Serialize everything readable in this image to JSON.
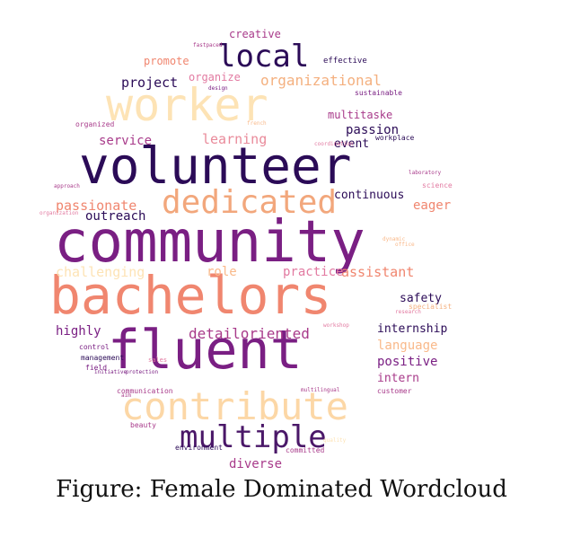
{
  "caption": "Figure: Female Dominated Wordcloud",
  "palette": {
    "dark": "#2b0b57",
    "purple": "#7a1f83",
    "magenta": "#a83a8a",
    "salmon": "#f0866f",
    "peach": "#f9b98a",
    "cream": "#fde3b5",
    "pink": "#e27aa1"
  },
  "words": [
    {
      "text": "community",
      "color": "#7a1f83",
      "weight": 1.0
    },
    {
      "text": "volunteer",
      "color": "#2b0b57",
      "weight": 0.86
    },
    {
      "text": "bachelors",
      "color": "#f0866f",
      "weight": 0.82
    },
    {
      "text": "fluent",
      "color": "#7a1f83",
      "weight": 0.78
    },
    {
      "text": "worker",
      "color": "#fde3b5",
      "weight": 0.7
    },
    {
      "text": "contribute",
      "color": "#fcd7a6",
      "weight": 0.55
    },
    {
      "text": "dedicated",
      "color": "#f2a77c",
      "weight": 0.48
    },
    {
      "text": "local",
      "color": "#2b0b57",
      "weight": 0.45
    },
    {
      "text": "multiple",
      "color": "#4a1768",
      "weight": 0.42
    },
    {
      "text": "passionate",
      "color": "#f0866f",
      "weight": 0.22
    },
    {
      "text": "organizational",
      "color": "#f4b07f",
      "weight": 0.22
    },
    {
      "text": "detailoriented",
      "color": "#a83a8a",
      "weight": 0.21
    },
    {
      "text": "challenging",
      "color": "#fde3b5",
      "weight": 0.2
    },
    {
      "text": "project",
      "color": "#2b0b57",
      "weight": 0.2
    },
    {
      "text": "assistant",
      "color": "#f0866f",
      "weight": 0.2
    },
    {
      "text": "learning",
      "color": "#e98a9a",
      "weight": 0.19
    },
    {
      "text": "service",
      "color": "#a83a8a",
      "weight": 0.18
    },
    {
      "text": "passion",
      "color": "#2b0b57",
      "weight": 0.18
    },
    {
      "text": "eager",
      "color": "#f0866f",
      "weight": 0.18
    },
    {
      "text": "outreach",
      "color": "#2b0b57",
      "weight": 0.17
    },
    {
      "text": "role",
      "color": "#f9b98a",
      "weight": 0.17
    },
    {
      "text": "practice",
      "color": "#e27aa1",
      "weight": 0.17
    },
    {
      "text": "highly",
      "color": "#7a1f83",
      "weight": 0.17
    },
    {
      "text": "language",
      "color": "#f9b98a",
      "weight": 0.17
    },
    {
      "text": "positive",
      "color": "#7a1f83",
      "weight": 0.17
    },
    {
      "text": "diverse",
      "color": "#a83a8a",
      "weight": 0.16
    },
    {
      "text": "promote",
      "color": "#f0866f",
      "weight": 0.15
    },
    {
      "text": "creative",
      "color": "#a83a8a",
      "weight": 0.14
    },
    {
      "text": "multitaske",
      "color": "#a83a8a",
      "weight": 0.14
    },
    {
      "text": "event",
      "color": "#2b0b57",
      "weight": 0.15
    },
    {
      "text": "continuous",
      "color": "#2b0b57",
      "weight": 0.14
    },
    {
      "text": "safety",
      "color": "#2b0b57",
      "weight": 0.14
    },
    {
      "text": "internship",
      "color": "#2b0b57",
      "weight": 0.14
    },
    {
      "text": "intern",
      "color": "#a83a8a",
      "weight": 0.14
    },
    {
      "text": "organize",
      "color": "#e27aa1",
      "weight": 0.13
    },
    {
      "text": "effective",
      "color": "#2b0b57",
      "weight": 0.1
    },
    {
      "text": "sustainable",
      "color": "#7a1f83",
      "weight": 0.09
    },
    {
      "text": "workplace",
      "color": "#2b0b57",
      "weight": 0.09
    },
    {
      "text": "science",
      "color": "#e27aa1",
      "weight": 0.09
    },
    {
      "text": "specialist",
      "color": "#f4b07f",
      "weight": 0.09
    },
    {
      "text": "control",
      "color": "#7a1f83",
      "weight": 0.09
    },
    {
      "text": "management",
      "color": "#2b0b57",
      "weight": 0.09
    },
    {
      "text": "field",
      "color": "#7a1f83",
      "weight": 0.09
    },
    {
      "text": "sales",
      "color": "#e27aa1",
      "weight": 0.08
    },
    {
      "text": "communication",
      "color": "#a83a8a",
      "weight": 0.09
    },
    {
      "text": "customer",
      "color": "#a83a8a",
      "weight": 0.08
    },
    {
      "text": "beauty",
      "color": "#a83a8a",
      "weight": 0.08
    },
    {
      "text": "environment",
      "color": "#2b0b57",
      "weight": 0.08
    },
    {
      "text": "committed",
      "color": "#a83a8a",
      "weight": 0.08
    },
    {
      "text": "organized",
      "color": "#a83a8a",
      "weight": 0.08
    },
    {
      "text": "fastpaced",
      "color": "#a83a8a",
      "weight": 0.06
    },
    {
      "text": "design",
      "color": "#7a1f83",
      "weight": 0.05
    },
    {
      "text": "french",
      "color": "#f9b98a",
      "weight": 0.05
    },
    {
      "text": "coordination",
      "color": "#e27aa1",
      "weight": 0.05
    },
    {
      "text": "laboratory",
      "color": "#a83a8a",
      "weight": 0.05
    },
    {
      "text": "approach",
      "color": "#a83a8a",
      "weight": 0.05
    },
    {
      "text": "organization",
      "color": "#e27aa1",
      "weight": 0.05
    },
    {
      "text": "initiative",
      "color": "#7a1f83",
      "weight": 0.05
    },
    {
      "text": "protection",
      "color": "#7a1f83",
      "weight": 0.05
    },
    {
      "text": "aim",
      "color": "#a83a8a",
      "weight": 0.05
    },
    {
      "text": "multilingual",
      "color": "#a83a8a",
      "weight": 0.05
    },
    {
      "text": "workshop",
      "color": "#e27aa1",
      "weight": 0.05
    },
    {
      "text": "research",
      "color": "#e27aa1",
      "weight": 0.05
    },
    {
      "text": "dynamic",
      "color": "#f9b98a",
      "weight": 0.05
    },
    {
      "text": "office",
      "color": "#f9b98a",
      "weight": 0.05
    },
    {
      "text": "quality",
      "color": "#fde3b5",
      "weight": 0.05
    }
  ]
}
